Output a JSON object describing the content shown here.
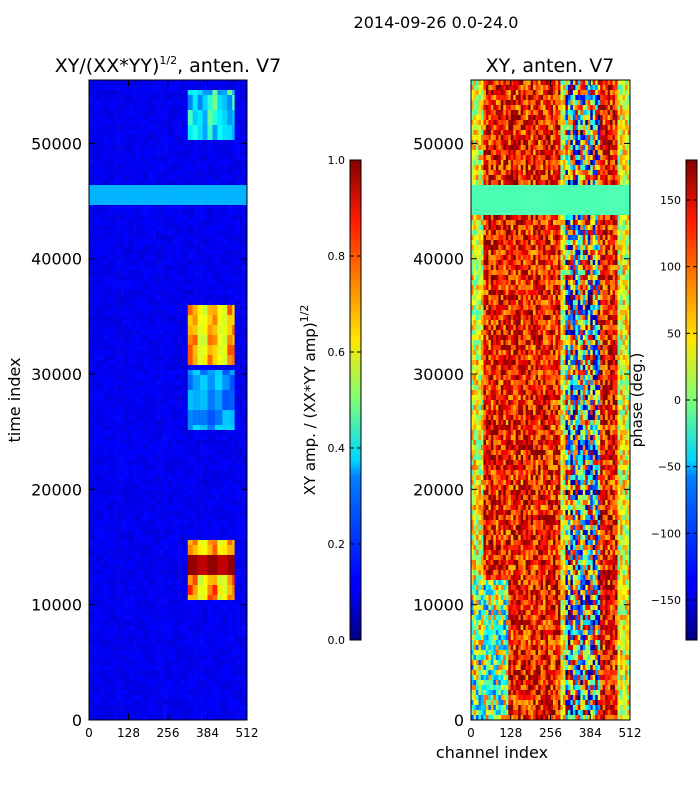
{
  "figure": {
    "suptitle": "2014-09-26 0.0-24.0"
  },
  "chart_data": [
    {
      "type": "heatmap",
      "name": "amplitude",
      "title_main": "XY/(XX*YY)",
      "title_exp": "1/2",
      "title_tail": ", anten. V7",
      "xlabel": "",
      "ylabel": "time index",
      "xlim": [
        0,
        512
      ],
      "ylim": [
        0,
        55500
      ],
      "xticks": [
        "0",
        "128",
        "256",
        "384",
        "512"
      ],
      "yticks": [
        "0",
        "10000",
        "20000",
        "30000",
        "40000",
        "50000"
      ],
      "colorbar": {
        "label_main": "XY amp. / (XX*YY amp)",
        "label_exp": "1/2",
        "range": [
          0.0,
          1.0
        ],
        "ticks": [
          "0.0",
          "0.2",
          "0.4",
          "0.6",
          "0.8",
          "1.0"
        ]
      }
    },
    {
      "type": "heatmap",
      "name": "phase",
      "title": "XY, anten. V7",
      "xlabel": "channel index",
      "ylabel": "",
      "xlim": [
        0,
        512
      ],
      "ylim": [
        0,
        55500
      ],
      "xticks": [
        "0",
        "128",
        "256",
        "384",
        "512"
      ],
      "yticks": [
        "0",
        "10000",
        "20000",
        "30000",
        "40000",
        "50000"
      ],
      "colorbar": {
        "label": "phase (deg.)",
        "range": [
          -180,
          180
        ],
        "ticks": [
          "−150",
          "−100",
          "−50",
          "0",
          "50",
          "100",
          "150"
        ]
      }
    }
  ]
}
